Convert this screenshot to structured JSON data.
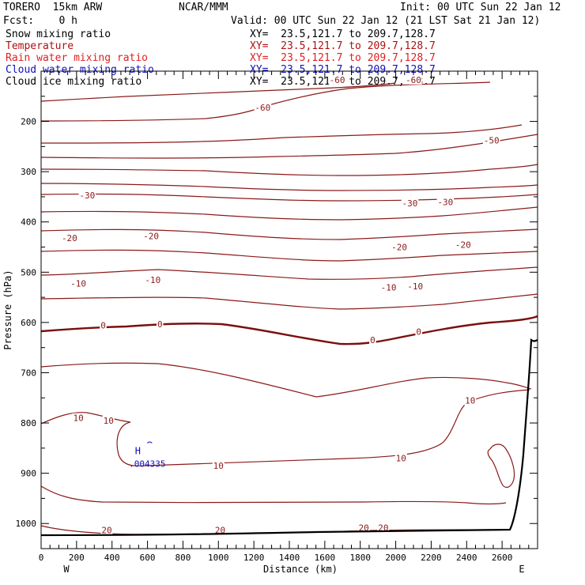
{
  "header": {
    "model": "TORERO  15km ARW",
    "center": "NCAR/MMM",
    "init": "Init: 00 UTC Sun 22 Jan 12",
    "fcst": "Fcst:    0 h",
    "valid": "Valid: 00 UTC Sun 22 Jan 12 (21 LST Sat 21 Jan 12)"
  },
  "legend": [
    {
      "label": "Snow mixing ratio",
      "xy": "XY=  23.5,121.7 to 209.7,128.7",
      "color": "#000000"
    },
    {
      "label": "Temperature",
      "xy": "XY=  23.5,121.7 to 209.7,128.7",
      "color": "#b01010"
    },
    {
      "label": "Rain water mixing ratio",
      "xy": "XY=  23.5,121.7 to 209.7,128.7",
      "color": "#e02020"
    },
    {
      "label": "Cloud water mixing ratio",
      "xy": "XY=  23.5,121.7 to 209.7,128.7",
      "color": "#1010c0"
    },
    {
      "label": "Cloud ice mixing ratio",
      "xy": "XY=  23.5,121.7 to 209.7,128.7",
      "color": "#000000"
    }
  ],
  "chart_data": {
    "type": "contour-cross-section",
    "xlabel": "Distance (km)",
    "ylabel": "Pressure (hPa)",
    "xlim": [
      0,
      2800
    ],
    "ylim": [
      1050,
      100
    ],
    "x_ticks": [
      "0",
      "200",
      "400",
      "600",
      "800",
      "1000",
      "1200",
      "1400",
      "1600",
      "1800",
      "2000",
      "2200",
      "2400",
      "2600"
    ],
    "x_tick_values": [
      0,
      200,
      400,
      600,
      800,
      1000,
      1200,
      1400,
      1600,
      1800,
      2000,
      2200,
      2400,
      2600
    ],
    "y_ticks": [
      "200",
      "300",
      "400",
      "500",
      "600",
      "700",
      "800",
      "900",
      "1000"
    ],
    "y_tick_values": [
      200,
      300,
      400,
      500,
      600,
      700,
      800,
      900,
      1000
    ],
    "left_end": "W",
    "right_end": "E",
    "max_label": "H",
    "max_value": ".004335",
    "max_location": {
      "x": 590,
      "p": 862
    },
    "contour_labels": [
      {
        "text": "-60",
        "x": 1670,
        "p": 117
      },
      {
        "text": "-60",
        "x": 2100,
        "p": 117
      },
      {
        "text": "-60",
        "x": 1250,
        "p": 172
      },
      {
        "text": "-50",
        "x": 2540,
        "p": 238
      },
      {
        "text": "-30",
        "x": 260,
        "p": 347
      },
      {
        "text": "-30",
        "x": 2080,
        "p": 363
      },
      {
        "text": "-30",
        "x": 2280,
        "p": 360
      },
      {
        "text": "-20",
        "x": 160,
        "p": 432
      },
      {
        "text": "-20",
        "x": 620,
        "p": 428
      },
      {
        "text": "-20",
        "x": 2020,
        "p": 450
      },
      {
        "text": "-20",
        "x": 2380,
        "p": 445
      },
      {
        "text": "-10",
        "x": 210,
        "p": 522
      },
      {
        "text": "-10",
        "x": 630,
        "p": 515
      },
      {
        "text": "-10",
        "x": 1960,
        "p": 530
      },
      {
        "text": "-10",
        "x": 2110,
        "p": 528
      },
      {
        "text": "0",
        "x": 350,
        "p": 606
      },
      {
        "text": "0",
        "x": 670,
        "p": 603
      },
      {
        "text": "0",
        "x": 1870,
        "p": 635
      },
      {
        "text": "0",
        "x": 2130,
        "p": 618
      },
      {
        "text": "10",
        "x": 210,
        "p": 790
      },
      {
        "text": "10",
        "x": 380,
        "p": 795
      },
      {
        "text": "10",
        "x": 1000,
        "p": 885
      },
      {
        "text": "10",
        "x": 2030,
        "p": 870
      },
      {
        "text": "10",
        "x": 2420,
        "p": 755
      },
      {
        "text": "20",
        "x": 370,
        "p": 1013
      },
      {
        "text": "20",
        "x": 1010,
        "p": 1013
      },
      {
        "text": "20",
        "x": 1820,
        "p": 1008
      },
      {
        "text": "20",
        "x": 1930,
        "p": 1008
      }
    ]
  }
}
